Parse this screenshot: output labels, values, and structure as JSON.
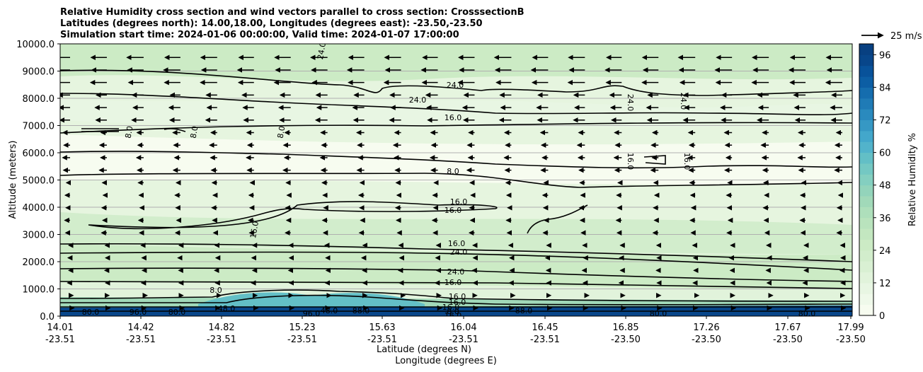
{
  "chart_data": {
    "type": "contour",
    "title": [
      "Relative Humidity cross section and wind vectors parallel to cross section: CrosssectionB",
      "Latitudes (degrees north): 14.00,18.00, Longitudes (degrees east): -23.50,-23.50",
      "Simulation start time: 2024-01-06 00:00:00, Valid time: 2024-01-07 17:00:00"
    ],
    "ylabel": "Altitude (meters)",
    "xlabel_lat": "Latitude (degrees N)",
    "xlabel_lon": "Longitude (degrees E)",
    "ylim": [
      0,
      10000
    ],
    "y_ticks": [
      "0.0",
      "1000.0",
      "2000.0",
      "3000.0",
      "4000.0",
      "5000.0",
      "6000.0",
      "7000.0",
      "8000.0",
      "9000.0",
      "10000.0"
    ],
    "x_ticks": [
      {
        "lat": "14.01",
        "lon": "-23.51"
      },
      {
        "lat": "14.42",
        "lon": "-23.51"
      },
      {
        "lat": "14.82",
        "lon": "-23.51"
      },
      {
        "lat": "15.23",
        "lon": "-23.51"
      },
      {
        "lat": "15.63",
        "lon": "-23.51"
      },
      {
        "lat": "16.04",
        "lon": "-23.51"
      },
      {
        "lat": "16.45",
        "lon": "-23.51"
      },
      {
        "lat": "16.85",
        "lon": "-23.50"
      },
      {
        "lat": "17.26",
        "lon": "-23.50"
      },
      {
        "lat": "17.67",
        "lon": "-23.50"
      },
      {
        "lat": "17.99",
        "lon": "-23.50"
      }
    ],
    "colorbar": {
      "label": "Relative Humidity %",
      "ticks": [
        "0",
        "12",
        "24",
        "36",
        "48",
        "60",
        "72",
        "84",
        "96"
      ],
      "range": [
        0,
        100
      ],
      "levels": 25,
      "colors": [
        "#f7fcf0",
        "#eff9ea",
        "#e8f6e3",
        "#e1f3db",
        "#d9f0d3",
        "#d2edcc",
        "#ccebc5",
        "#c3e7c0",
        "#b9e3bd",
        "#aedfbb",
        "#a1d9b9",
        "#93d4bb",
        "#84cfc0",
        "#74c8c3",
        "#63bfc6",
        "#52b3cb",
        "#43a7cb",
        "#3698c4",
        "#2a8abe",
        "#1f7bb6",
        "#156dae",
        "#0c5ea4",
        "#08529a",
        "#08468a",
        "#084081"
      ]
    },
    "wind_key": {
      "label": "25 m/s",
      "speed": 25
    },
    "contour_labels": [
      "24.0",
      "24.0",
      "24.0",
      "24.0",
      "24.0",
      "16.0",
      "16.0",
      "16.0",
      "16.0",
      "16.0",
      "16.0",
      "16.0",
      "8.0",
      "8.0",
      "8.0",
      "8.0",
      "8.0",
      "16.0",
      "16.0",
      "16.0",
      "24.0",
      "24.0",
      "16.0",
      "8.0",
      "16.0",
      "80.0",
      "80.0",
      "80.0",
      "80.0",
      "96.0",
      "96.0",
      "48.0",
      "48.0",
      "88.0",
      "88.0"
    ]
  }
}
